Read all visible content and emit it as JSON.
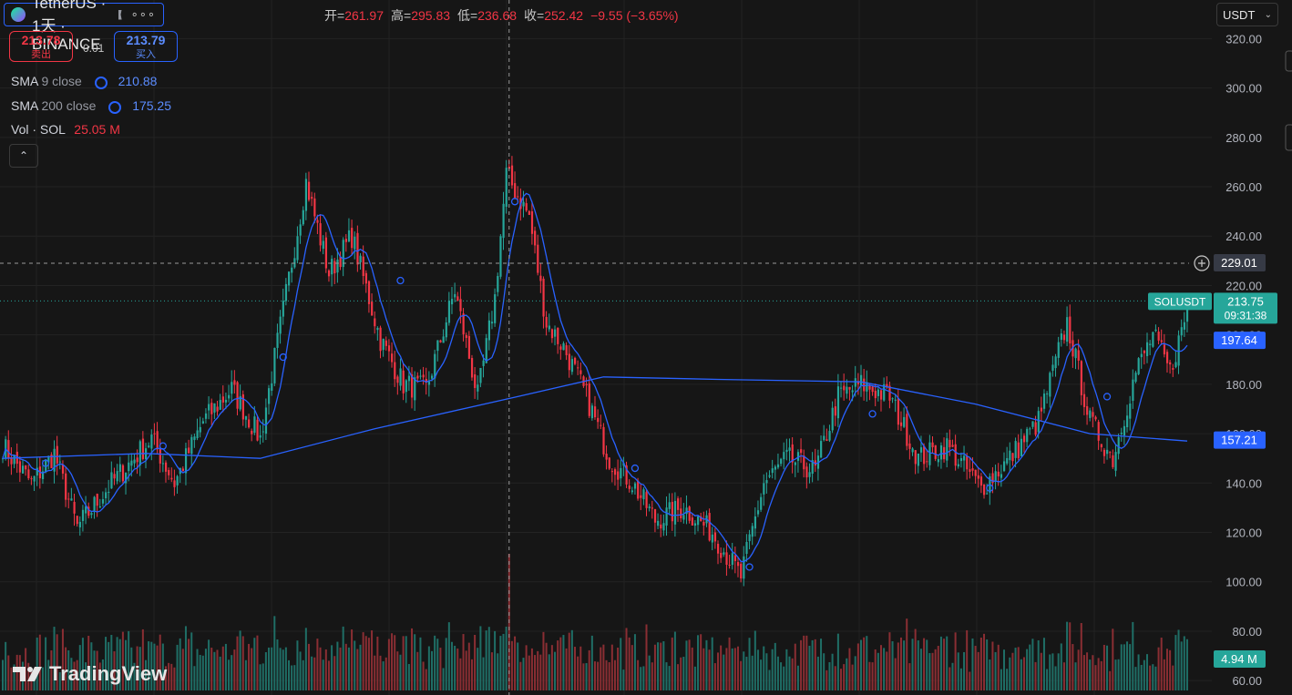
{
  "header": {
    "symbol": "SOL / TetherUS · 1天 · BINANCE",
    "ohlc_text": [
      {
        "label": "开=",
        "value": "261.97"
      },
      {
        "label": "高=",
        "value": "295.83"
      },
      {
        "label": "低=",
        "value": "236.68"
      },
      {
        "label": "收=",
        "value": "252.42"
      },
      {
        "label": "",
        "value": "−9.55 (−3.65%)"
      }
    ],
    "more_glyph": "∘∘∘"
  },
  "trade": {
    "sell_price": "213.78",
    "sell_label": "卖出",
    "spread": "0.01",
    "buy_price": "213.79",
    "buy_label": "买入"
  },
  "indicators": [
    {
      "name": "SMA",
      "params": "9 close",
      "value": "210.88",
      "color": "#2962ff"
    },
    {
      "name": "SMA",
      "params": "200 close",
      "value": "175.25",
      "color": "#2962ff"
    },
    {
      "name": "Vol · SOL",
      "params": "",
      "value": "25.05 M",
      "color": "#f23645"
    }
  ],
  "toolbar": {
    "collapse_glyph": "⌃",
    "currency": "USDT",
    "currency_chevron": "⌄"
  },
  "branding": {
    "text": "TradingView"
  },
  "price_axis": {
    "ticks": [
      {
        "v": 320,
        "label": "320.00"
      },
      {
        "v": 300,
        "label": "300.00"
      },
      {
        "v": 280,
        "label": "280.00"
      },
      {
        "v": 260,
        "label": "260.00"
      },
      {
        "v": 240,
        "label": "240.00"
      },
      {
        "v": 220,
        "label": "220.00"
      },
      {
        "v": 200,
        "label": "200.00"
      },
      {
        "v": 180,
        "label": "180.00"
      },
      {
        "v": 160,
        "label": "160.00"
      },
      {
        "v": 140,
        "label": "140.00"
      },
      {
        "v": 120,
        "label": "120.00"
      },
      {
        "v": 100,
        "label": "100.00"
      },
      {
        "v": 80,
        "label": "80.00"
      },
      {
        "v": 60,
        "label": "60.00"
      }
    ]
  },
  "badges": {
    "crosshair": {
      "price": 229.01,
      "label": "229.01"
    },
    "last": {
      "price": 213.75,
      "symbol": "SOLUSDT",
      "label": "213.75",
      "countdown": "09:31:38",
      "color": "#26a69a"
    },
    "sma9": {
      "price": 197.64,
      "label": "197.64",
      "color": "#2962ff"
    },
    "sma200": {
      "price": 157.21,
      "label": "157.21",
      "color": "#2962ff"
    },
    "volume": {
      "label": "4.94 M",
      "color": "#26a69a"
    }
  },
  "colors": {
    "up": "#26a69a",
    "down": "#f23645",
    "sma": "#2962ff",
    "grid": "#232323",
    "background": "#161616"
  },
  "chart_data": {
    "type": "candlestick",
    "symbol": "SOLUSDT",
    "ylim": [
      56,
      329
    ],
    "grid": true,
    "key_points": [
      {
        "i": 0,
        "p": 155
      },
      {
        "i": 10,
        "p": 140
      },
      {
        "i": 18,
        "p": 152
      },
      {
        "i": 26,
        "p": 122
      },
      {
        "i": 38,
        "p": 140
      },
      {
        "i": 52,
        "p": 158
      },
      {
        "i": 60,
        "p": 140
      },
      {
        "i": 70,
        "p": 165
      },
      {
        "i": 80,
        "p": 178
      },
      {
        "i": 90,
        "p": 158
      },
      {
        "i": 98,
        "p": 210
      },
      {
        "i": 106,
        "p": 262
      },
      {
        "i": 114,
        "p": 225
      },
      {
        "i": 122,
        "p": 240
      },
      {
        "i": 132,
        "p": 198
      },
      {
        "i": 140,
        "p": 180
      },
      {
        "i": 148,
        "p": 178
      },
      {
        "i": 158,
        "p": 218
      },
      {
        "i": 166,
        "p": 175
      },
      {
        "i": 172,
        "p": 215
      },
      {
        "i": 176,
        "p": 265
      },
      {
        "i": 184,
        "p": 248
      },
      {
        "i": 190,
        "p": 205
      },
      {
        "i": 196,
        "p": 195
      },
      {
        "i": 204,
        "p": 175
      },
      {
        "i": 212,
        "p": 150
      },
      {
        "i": 220,
        "p": 140
      },
      {
        "i": 228,
        "p": 125
      },
      {
        "i": 238,
        "p": 130
      },
      {
        "i": 248,
        "p": 120
      },
      {
        "i": 258,
        "p": 102
      },
      {
        "i": 266,
        "p": 140
      },
      {
        "i": 274,
        "p": 150
      },
      {
        "i": 284,
        "p": 145
      },
      {
        "i": 292,
        "p": 175
      },
      {
        "i": 300,
        "p": 180
      },
      {
        "i": 310,
        "p": 175
      },
      {
        "i": 320,
        "p": 150
      },
      {
        "i": 330,
        "p": 155
      },
      {
        "i": 342,
        "p": 138
      },
      {
        "i": 352,
        "p": 150
      },
      {
        "i": 362,
        "p": 165
      },
      {
        "i": 372,
        "p": 205
      },
      {
        "i": 380,
        "p": 165
      },
      {
        "i": 388,
        "p": 150
      },
      {
        "i": 396,
        "p": 185
      },
      {
        "i": 402,
        "p": 200
      },
      {
        "i": 408,
        "p": 185
      },
      {
        "i": 414,
        "p": 210
      }
    ],
    "sma200_points": [
      {
        "i": 0,
        "p": 150
      },
      {
        "i": 50,
        "p": 152
      },
      {
        "i": 90,
        "p": 150
      },
      {
        "i": 130,
        "p": 162
      },
      {
        "i": 180,
        "p": 175
      },
      {
        "i": 210,
        "p": 183
      },
      {
        "i": 250,
        "p": 182
      },
      {
        "i": 300,
        "p": 181
      },
      {
        "i": 340,
        "p": 172
      },
      {
        "i": 380,
        "p": 160
      },
      {
        "i": 414,
        "p": 157
      }
    ]
  }
}
